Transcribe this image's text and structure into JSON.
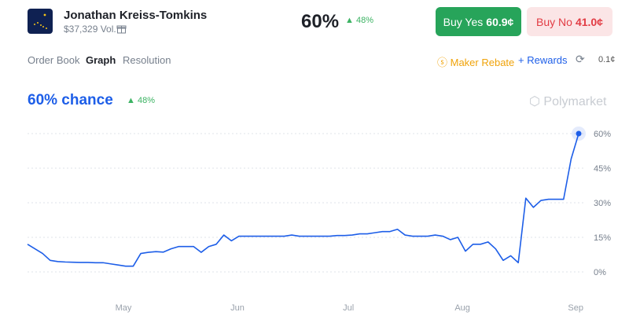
{
  "header": {
    "title": "Jonathan Kreiss-Tomkins",
    "volume": "$37,329 Vol.",
    "price": "60%",
    "change": "48%"
  },
  "buttons": {
    "yes_label": "Buy Yes",
    "yes_price": "60.9¢",
    "no_label": "Buy No",
    "no_price": "41.0¢"
  },
  "tabs": [
    "Order Book",
    "Graph",
    "Resolution"
  ],
  "toolbar": {
    "rebate": "Maker Rebate",
    "rewards": "Rewards",
    "spread": "0.1¢"
  },
  "chart_data": {
    "type": "line",
    "title": "60% chance",
    "change": "48%",
    "watermark": "Polymarket",
    "color": "#1d5ee8",
    "values": [
      12,
      10,
      8,
      5,
      4.5,
      4.3,
      4.2,
      4.1,
      4.1,
      4,
      4,
      3.5,
      3,
      2.5,
      2.5,
      8,
      8.5,
      8.8,
      8.6,
      10,
      11,
      11,
      11,
      8.5,
      11,
      12,
      16,
      13.5,
      15.5,
      15.5,
      15.5,
      15.5,
      15.5,
      15.5,
      15.5,
      16,
      15.5,
      15.5,
      15.5,
      15.5,
      15.5,
      15.8,
      15.8,
      16,
      16.5,
      16.5,
      17,
      17.5,
      17.5,
      18.5,
      16,
      15.5,
      15.5,
      15.5,
      16,
      15.5,
      14,
      15,
      9,
      12,
      12,
      13,
      10,
      5,
      7,
      4,
      32,
      28,
      31,
      31.5,
      31.5,
      31.5,
      49,
      60
    ],
    "xlim": [
      0,
      73
    ],
    "xticks": [
      {
        "value": 12.7,
        "label": "May"
      },
      {
        "value": 27.8,
        "label": "Jun"
      },
      {
        "value": 42.5,
        "label": "Jul"
      },
      {
        "value": 57.6,
        "label": "Aug"
      },
      {
        "value": 72.6,
        "label": "Sep"
      }
    ],
    "ylim": [
      0,
      60
    ],
    "yticks": [
      {
        "value": 0,
        "label": "0%"
      },
      {
        "value": 15,
        "label": "15%"
      },
      {
        "value": 30,
        "label": "30%"
      },
      {
        "value": 45,
        "label": "45%"
      },
      {
        "value": 60,
        "label": "60%"
      }
    ],
    "grid": true
  }
}
